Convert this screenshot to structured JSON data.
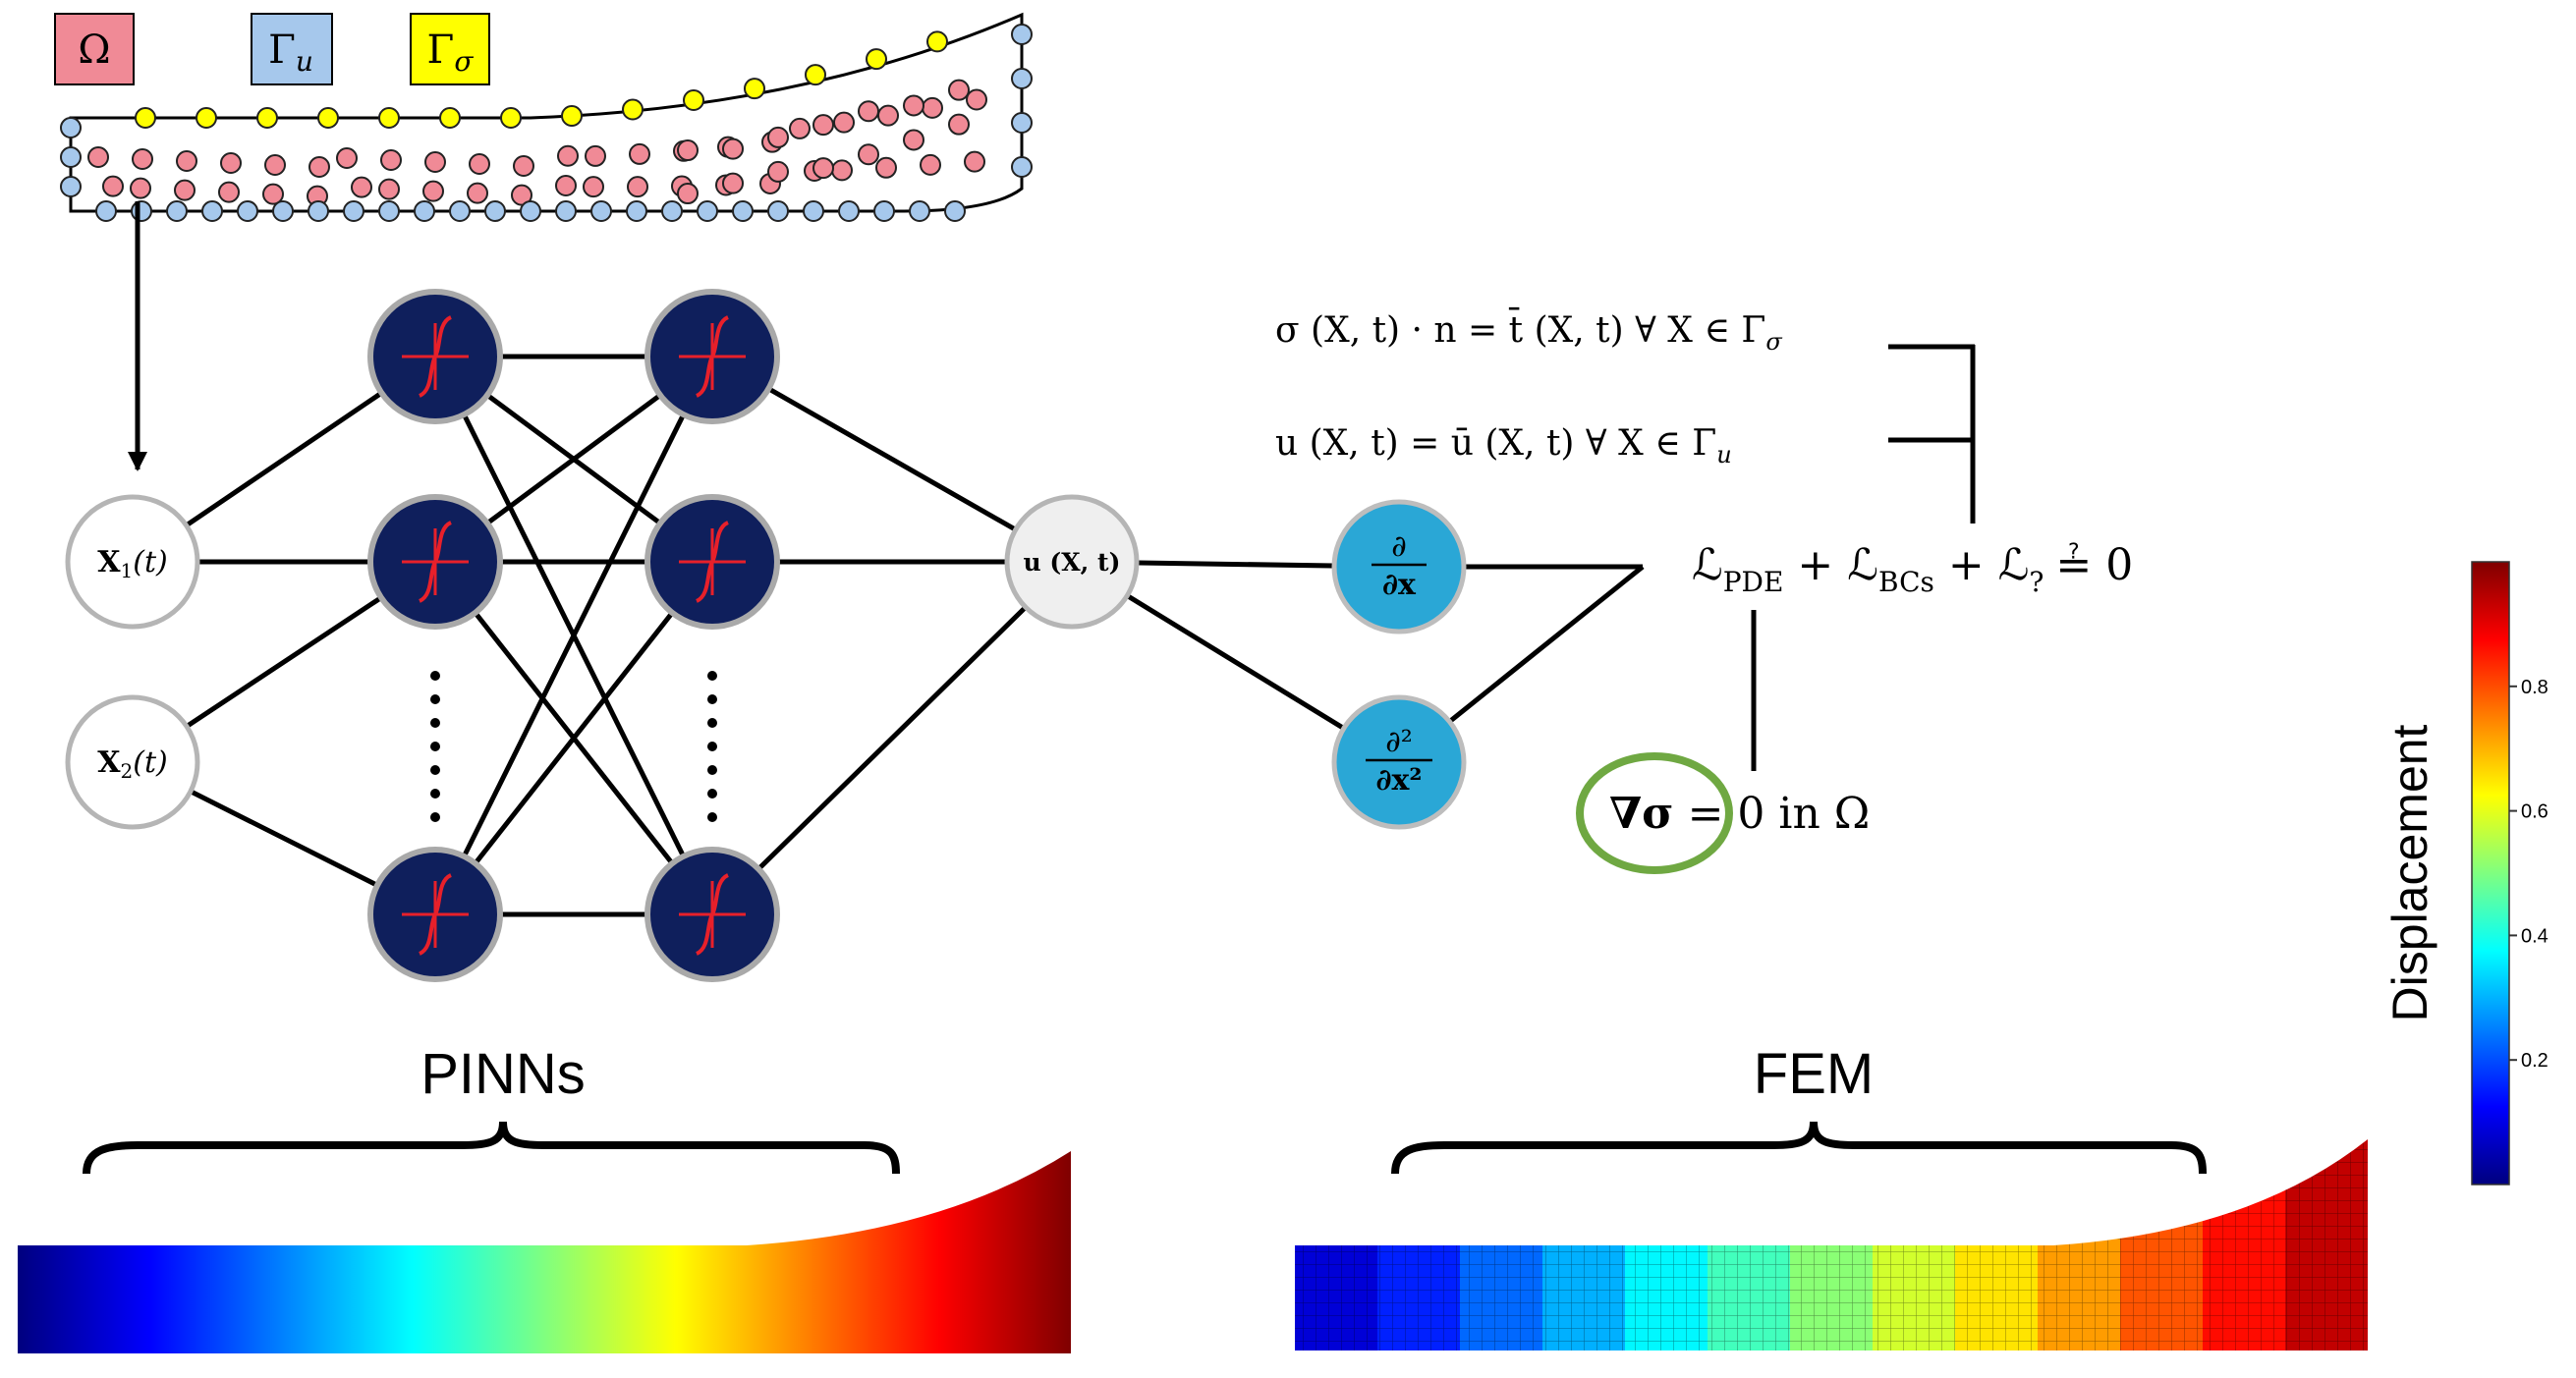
{
  "legend": {
    "omega": "Ω",
    "gamma_u_base": "Γ",
    "gamma_u_sub": "u",
    "gamma_sigma_base": "Γ",
    "gamma_sigma_sub": "σ"
  },
  "inputs": [
    {
      "base": "X",
      "sub": "1",
      "arg": "(t)"
    },
    {
      "base": "X",
      "sub": "2",
      "arg": "(t)"
    }
  ],
  "output": {
    "text": "u (X, t)"
  },
  "derivatives": {
    "first_num": "∂",
    "first_den": "∂x",
    "second_num": "∂²",
    "second_den": "∂x²"
  },
  "equations": {
    "traction_bc": "σ (X, t) · n = t̄ (X, t)  ∀ X ∈ Γ",
    "traction_sub": "σ",
    "displacement_bc": "u (X, t) = ū (X, t)  ∀ X ∈ Γ",
    "displacement_sub": "u",
    "loss_a": "ℒ",
    "loss_a_sub": "PDE",
    "loss_b": " + ℒ",
    "loss_b_sub": "BCs",
    "loss_c": " + ℒ",
    "loss_c_sub": "?",
    "loss_eq": "≟ 0",
    "pde_nabla": "∇σ",
    "pde_rest": " = 0 in Ω"
  },
  "labels": {
    "pinns": "PINNs",
    "fem": "FEM"
  },
  "colorbar": {
    "label": "Displacement",
    "ticks": [
      "0.2",
      "0.4",
      "0.6",
      "0.8"
    ],
    "tick_values": [
      0.2,
      0.4,
      0.6,
      0.8
    ],
    "range": [
      0,
      1
    ],
    "colormap": "jet"
  },
  "colors": {
    "omega": "#f08a96",
    "gamma_u": "#a6c8ec",
    "gamma_sigma": "#ffff00",
    "neuron_fill": "#0f1f5c",
    "neuron_curve": "#e8202a",
    "derivative_fill": "#2aa7d6",
    "pde_circle": "#6fa842"
  }
}
